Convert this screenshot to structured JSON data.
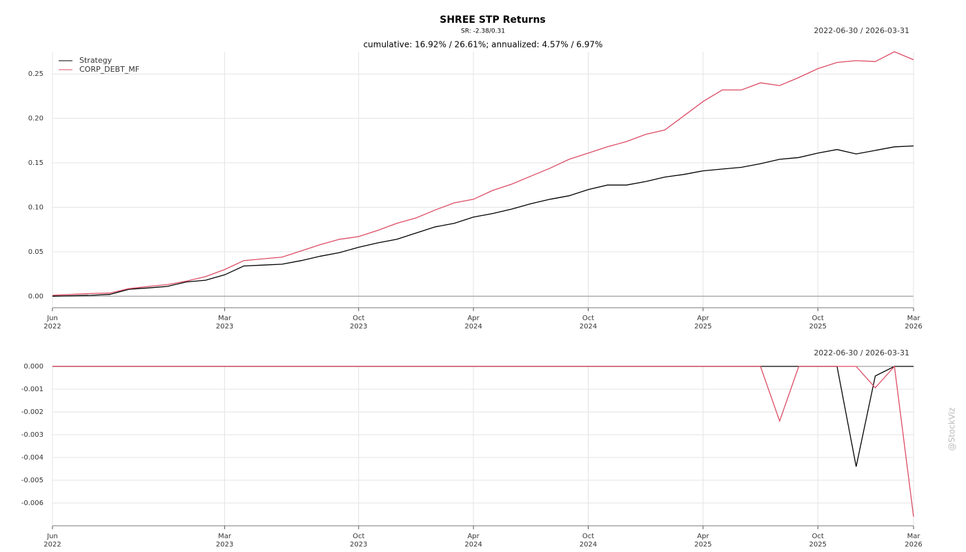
{
  "chart_data": [
    {
      "type": "line",
      "title": "SHREE STP Returns",
      "subtitle": "SR: -2.38/0.31",
      "date_range": "2022-06-30 / 2026-03-31",
      "annotation": "cumulative: 16.92% / 26.61%; annualized: 4.57% / 6.97%",
      "watermark": "@StockViz",
      "legend": "upper left",
      "grid": true,
      "x": [
        "2022-06",
        "2022-07",
        "2022-08",
        "2022-09",
        "2022-10",
        "2022-11",
        "2022-12",
        "2023-01",
        "2023-02",
        "2023-03",
        "2023-04",
        "2023-05",
        "2023-06",
        "2023-07",
        "2023-08",
        "2023-09",
        "2023-10",
        "2023-11",
        "2023-12",
        "2024-01",
        "2024-02",
        "2024-03",
        "2024-04",
        "2024-05",
        "2024-06",
        "2024-07",
        "2024-08",
        "2024-09",
        "2024-10",
        "2024-11",
        "2024-12",
        "2025-01",
        "2025-02",
        "2025-03",
        "2025-04",
        "2025-05",
        "2025-06",
        "2025-07",
        "2025-08",
        "2025-09",
        "2025-10",
        "2025-11",
        "2025-12",
        "2026-01",
        "2026-02",
        "2026-03"
      ],
      "xlim": [
        "2022-06",
        "2026-03"
      ],
      "xticks": [
        {
          "value": "2022-06",
          "label": [
            "Jun",
            "2022"
          ]
        },
        {
          "value": "2023-03",
          "label": [
            "Mar",
            "2023"
          ]
        },
        {
          "value": "2023-10",
          "label": [
            "Oct",
            "2023"
          ]
        },
        {
          "value": "2024-04",
          "label": [
            "Apr",
            "2024"
          ]
        },
        {
          "value": "2024-10",
          "label": [
            "Oct",
            "2024"
          ]
        },
        {
          "value": "2025-04",
          "label": [
            "Apr",
            "2025"
          ]
        },
        {
          "value": "2025-10",
          "label": [
            "Oct",
            "2025"
          ]
        },
        {
          "value": "2026-03",
          "label": [
            "Mar",
            "2026"
          ]
        }
      ],
      "ylim": [
        -0.013,
        0.275
      ],
      "yticks": [
        {
          "value": 0,
          "label": "0.00"
        },
        {
          "value": 0.05,
          "label": "0.05"
        },
        {
          "value": 0.1,
          "label": "0.10"
        },
        {
          "value": 0.15,
          "label": "0.15"
        },
        {
          "value": 0.2,
          "label": "0.20"
        },
        {
          "value": 0.25,
          "label": "0.25"
        }
      ],
      "series": [
        {
          "name": "Strategy",
          "color": "#000000",
          "values": [
            0,
            0.0005,
            0.001,
            0.002,
            0.0078,
            0.0093,
            0.011,
            0.016,
            0.018,
            0.024,
            0.034,
            0.035,
            0.036,
            0.04,
            0.045,
            0.049,
            0.055,
            0.06,
            0.064,
            0.071,
            0.078,
            0.082,
            0.089,
            0.093,
            0.098,
            0.104,
            0.109,
            0.113,
            0.12,
            0.125,
            0.125,
            0.129,
            0.134,
            0.137,
            0.141,
            0.143,
            0.145,
            0.149,
            0.154,
            0.156,
            0.161,
            0.165,
            0.16,
            0.164,
            0.168,
            0.169
          ]
        },
        {
          "name": "CORP_DEBT_MF",
          "color": "#dc4c64",
          "values": [
            0.001,
            0.002,
            0.003,
            0.0035,
            0.0085,
            0.011,
            0.013,
            0.017,
            0.022,
            0.03,
            0.04,
            0.042,
            0.044,
            0.051,
            0.058,
            0.064,
            0.067,
            0.074,
            0.082,
            0.088,
            0.097,
            0.105,
            0.109,
            0.119,
            0.126,
            0.135,
            0.144,
            0.154,
            0.161,
            0.168,
            0.174,
            0.182,
            0.187,
            0.203,
            0.219,
            0.232,
            0.232,
            0.24,
            0.237,
            0.246,
            0.256,
            0.263,
            0.265,
            0.264,
            0.275,
            0.266
          ]
        }
      ]
    },
    {
      "type": "line",
      "date_range": "2022-06-30 / 2026-03-31",
      "grid": true,
      "x": [
        "2022-06",
        "2022-07",
        "2022-08",
        "2022-09",
        "2022-10",
        "2022-11",
        "2022-12",
        "2023-01",
        "2023-02",
        "2023-03",
        "2023-04",
        "2023-05",
        "2023-06",
        "2023-07",
        "2023-08",
        "2023-09",
        "2023-10",
        "2023-11",
        "2023-12",
        "2024-01",
        "2024-02",
        "2024-03",
        "2024-04",
        "2024-05",
        "2024-06",
        "2024-07",
        "2024-08",
        "2024-09",
        "2024-10",
        "2024-11",
        "2024-12",
        "2025-01",
        "2025-02",
        "2025-03",
        "2025-04",
        "2025-05",
        "2025-06",
        "2025-07",
        "2025-08",
        "2025-09",
        "2025-10",
        "2025-11",
        "2025-12",
        "2026-01",
        "2026-02",
        "2026-03"
      ],
      "xlim": [
        "2022-06",
        "2026-03"
      ],
      "xticks": [
        {
          "value": "2022-06",
          "label": [
            "Jun",
            "2022"
          ]
        },
        {
          "value": "2023-03",
          "label": [
            "Mar",
            "2023"
          ]
        },
        {
          "value": "2023-10",
          "label": [
            "Oct",
            "2023"
          ]
        },
        {
          "value": "2024-04",
          "label": [
            "Apr",
            "2024"
          ]
        },
        {
          "value": "2024-10",
          "label": [
            "Oct",
            "2024"
          ]
        },
        {
          "value": "2025-04",
          "label": [
            "Apr",
            "2025"
          ]
        },
        {
          "value": "2025-10",
          "label": [
            "Oct",
            "2025"
          ]
        },
        {
          "value": "2026-03",
          "label": [
            "Mar",
            "2026"
          ]
        }
      ],
      "ylim": [
        -0.007,
        0
      ],
      "yticks": [
        {
          "value": 0,
          "label": "0.000"
        },
        {
          "value": -0.001,
          "label": "-0.001"
        },
        {
          "value": -0.002,
          "label": "-0.002"
        },
        {
          "value": -0.003,
          "label": "-0.003"
        },
        {
          "value": -0.004,
          "label": "-0.004"
        },
        {
          "value": -0.005,
          "label": "-0.005"
        },
        {
          "value": -0.006,
          "label": "-0.006"
        }
      ],
      "series": [
        {
          "color": "#000000",
          "values": [
            0,
            0,
            0,
            0,
            0,
            0,
            0,
            0,
            0,
            0,
            0,
            0,
            0,
            0,
            0,
            0,
            0,
            0,
            0,
            0,
            0,
            0,
            0,
            0,
            0,
            0,
            0,
            0,
            0,
            0,
            0,
            0,
            0,
            0,
            0,
            0,
            0,
            0,
            0,
            0,
            0,
            0,
            -0.0044,
            -0.00042,
            0,
            0
          ]
        },
        {
          "color": "#dc4c64",
          "values": [
            0,
            0,
            0,
            0,
            0,
            0,
            0,
            0,
            0,
            0,
            0,
            0,
            0,
            0,
            0,
            0,
            0,
            0,
            0,
            0,
            0,
            0,
            0,
            0,
            0,
            0,
            0,
            0,
            0,
            0,
            0,
            0,
            0,
            0,
            0,
            0,
            0,
            0,
            -0.0024,
            0,
            0,
            0,
            0,
            -0.00094,
            0,
            -0.0066
          ]
        }
      ]
    }
  ]
}
